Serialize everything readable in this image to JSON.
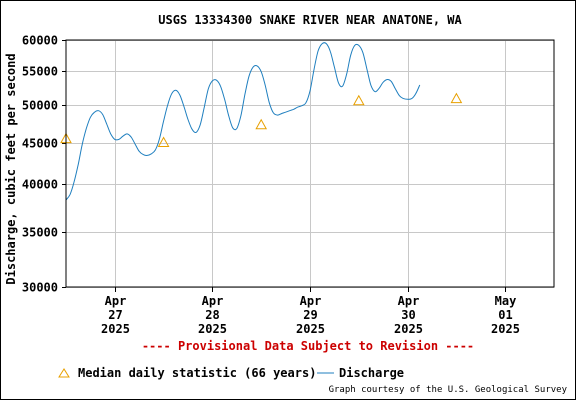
{
  "chart_data": {
    "type": "line",
    "title": "USGS 13334300 SNAKE RIVER NEAR ANATONE, WA",
    "ylabel": "Discharge, cubic feet per second",
    "ylim": [
      30000,
      60000
    ],
    "yscale": "log",
    "yticks": [
      30000,
      35000,
      40000,
      45000,
      50000,
      55000,
      60000
    ],
    "ytick_labels": [
      "30000",
      "35000",
      "40000",
      "45000",
      "50000",
      "55000",
      "60000"
    ],
    "xlim": [
      "2025-04-26 12:00",
      "2025-05-01 12:00"
    ],
    "xticks": [
      {
        "x": "2025-04-27",
        "lines": [
          "Apr",
          "27",
          "2025"
        ]
      },
      {
        "x": "2025-04-28",
        "lines": [
          "Apr",
          "28",
          "2025"
        ]
      },
      {
        "x": "2025-04-29",
        "lines": [
          "Apr",
          "29",
          "2025"
        ]
      },
      {
        "x": "2025-04-30",
        "lines": [
          "Apr",
          "30",
          "2025"
        ]
      },
      {
        "x": "2025-05-01",
        "lines": [
          "May",
          "01",
          "2025"
        ]
      }
    ],
    "grid": true,
    "series": [
      {
        "name": "Discharge",
        "color": "#1f7fbf",
        "points": [
          [
            "2025-04-26 12:00",
            38300
          ],
          [
            "2025-04-26 13:00",
            38900
          ],
          [
            "2025-04-26 14:00",
            40300
          ],
          [
            "2025-04-26 15:00",
            42300
          ],
          [
            "2025-04-26 16:00",
            44800
          ],
          [
            "2025-04-26 17:00",
            46800
          ],
          [
            "2025-04-26 18:00",
            48300
          ],
          [
            "2025-04-26 19:00",
            49000
          ],
          [
            "2025-04-26 20:00",
            49200
          ],
          [
            "2025-04-26 21:00",
            48700
          ],
          [
            "2025-04-26 22:00",
            47400
          ],
          [
            "2025-04-26 23:00",
            46100
          ],
          [
            "2025-04-27 00:00",
            45400
          ],
          [
            "2025-04-27 01:00",
            45400
          ],
          [
            "2025-04-27 02:00",
            45800
          ],
          [
            "2025-04-27 03:00",
            46100
          ],
          [
            "2025-04-27 04:00",
            45700
          ],
          [
            "2025-04-27 05:00",
            44800
          ],
          [
            "2025-04-27 06:00",
            43900
          ],
          [
            "2025-04-27 07:00",
            43500
          ],
          [
            "2025-04-27 08:00",
            43400
          ],
          [
            "2025-04-27 09:00",
            43600
          ],
          [
            "2025-04-27 10:00",
            44100
          ],
          [
            "2025-04-27 11:00",
            45500
          ],
          [
            "2025-04-27 12:00",
            47800
          ],
          [
            "2025-04-27 13:00",
            50000
          ],
          [
            "2025-04-27 14:00",
            51600
          ],
          [
            "2025-04-27 15:00",
            52100
          ],
          [
            "2025-04-27 16:00",
            51400
          ],
          [
            "2025-04-27 17:00",
            49800
          ],
          [
            "2025-04-27 18:00",
            48000
          ],
          [
            "2025-04-27 19:00",
            46700
          ],
          [
            "2025-04-27 20:00",
            46300
          ],
          [
            "2025-04-27 21:00",
            47300
          ],
          [
            "2025-04-27 22:00",
            49700
          ],
          [
            "2025-04-27 23:00",
            52300
          ],
          [
            "2025-04-28 00:00",
            53500
          ],
          [
            "2025-04-28 01:00",
            53600
          ],
          [
            "2025-04-28 02:00",
            52700
          ],
          [
            "2025-04-28 03:00",
            50800
          ],
          [
            "2025-04-28 04:00",
            48500
          ],
          [
            "2025-04-28 05:00",
            46900
          ],
          [
            "2025-04-28 06:00",
            46800
          ],
          [
            "2025-04-28 07:00",
            48500
          ],
          [
            "2025-04-28 08:00",
            51500
          ],
          [
            "2025-04-28 09:00",
            54200
          ],
          [
            "2025-04-28 10:00",
            55600
          ],
          [
            "2025-04-28 11:00",
            55800
          ],
          [
            "2025-04-28 12:00",
            54900
          ],
          [
            "2025-04-28 13:00",
            52800
          ],
          [
            "2025-04-28 14:00",
            50300
          ],
          [
            "2025-04-28 15:00",
            48900
          ],
          [
            "2025-04-28 16:00",
            48600
          ],
          [
            "2025-04-28 17:00",
            48800
          ],
          [
            "2025-04-28 18:00",
            49000
          ],
          [
            "2025-04-28 19:00",
            49200
          ],
          [
            "2025-04-28 20:00",
            49400
          ],
          [
            "2025-04-28 21:00",
            49700
          ],
          [
            "2025-04-28 22:00",
            49900
          ],
          [
            "2025-04-28 23:00",
            50300
          ],
          [
            "2025-04-29 00:00",
            52000
          ],
          [
            "2025-04-29 01:00",
            55300
          ],
          [
            "2025-04-29 02:00",
            58200
          ],
          [
            "2025-04-29 03:00",
            59400
          ],
          [
            "2025-04-29 04:00",
            59400
          ],
          [
            "2025-04-29 05:00",
            58100
          ],
          [
            "2025-04-29 06:00",
            55600
          ],
          [
            "2025-04-29 07:00",
            53200
          ],
          [
            "2025-04-29 08:00",
            52700
          ],
          [
            "2025-04-29 09:00",
            54500
          ],
          [
            "2025-04-29 10:00",
            57500
          ],
          [
            "2025-04-29 11:00",
            59100
          ],
          [
            "2025-04-29 12:00",
            59100
          ],
          [
            "2025-04-29 13:00",
            57900
          ],
          [
            "2025-04-29 14:00",
            55300
          ],
          [
            "2025-04-29 15:00",
            52800
          ],
          [
            "2025-04-29 16:00",
            51900
          ],
          [
            "2025-04-29 17:00",
            52400
          ],
          [
            "2025-04-29 18:00",
            53300
          ],
          [
            "2025-04-29 19:00",
            53700
          ],
          [
            "2025-04-29 20:00",
            53400
          ],
          [
            "2025-04-29 21:00",
            52300
          ],
          [
            "2025-04-29 22:00",
            51300
          ],
          [
            "2025-04-29 23:00",
            50900
          ],
          [
            "2025-04-30 00:00",
            50800
          ],
          [
            "2025-04-30 01:00",
            50900
          ],
          [
            "2025-04-30 02:00",
            51600
          ],
          [
            "2025-04-30 03:00",
            52900
          ]
        ]
      },
      {
        "name": "Median daily statistic (66 years)",
        "color": "#e8a000",
        "marker": "triangle",
        "points": [
          [
            "2025-04-26 12:00",
            45500
          ],
          [
            "2025-04-27 12:00",
            45000
          ],
          [
            "2025-04-28 12:00",
            47300
          ],
          [
            "2025-04-29 12:00",
            50600
          ],
          [
            "2025-04-30 12:00",
            50900
          ]
        ]
      }
    ],
    "xlim_hours": [
      0,
      120
    ],
    "legend": {
      "placement": "bottom",
      "items": [
        {
          "label": "Median daily statistic (66 years)",
          "marker": "triangle",
          "color": "#e8a000"
        },
        {
          "label": "Discharge",
          "marker": "line",
          "color": "#1f7fbf"
        }
      ]
    },
    "annotation": {
      "text": "---- Provisional Data Subject to Revision ----",
      "color": "#cc0000"
    },
    "credit": "Graph courtesy of the U.S. Geological Survey"
  }
}
